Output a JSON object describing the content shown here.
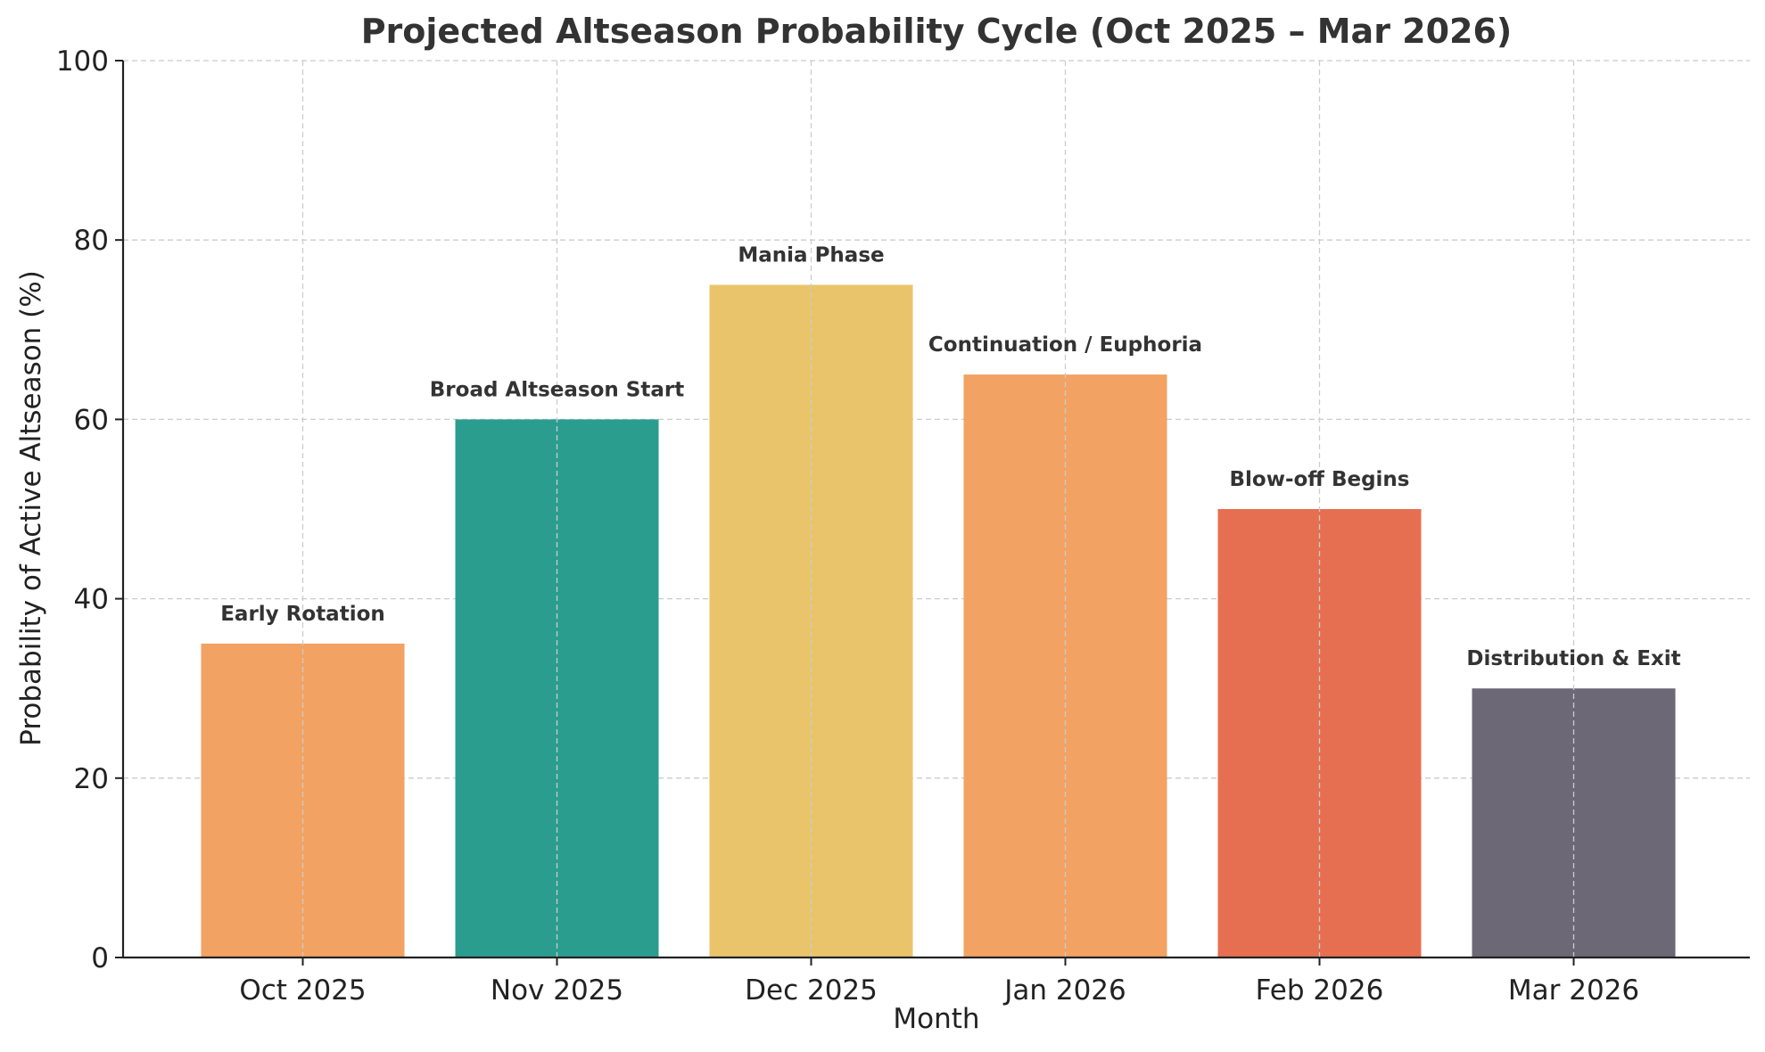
{
  "chart_data": {
    "type": "bar",
    "title": "Projected Altseason Probability Cycle (Oct 2025 – Mar 2026)",
    "xlabel": "Month",
    "ylabel": "Probability of Active Altseason (%)",
    "ylim": [
      0,
      100
    ],
    "yticks": [
      "0",
      "20",
      "40",
      "60",
      "80",
      "100"
    ],
    "grid": true,
    "categories": [
      "Oct 2025",
      "Nov 2025",
      "Dec 2025",
      "Jan 2026",
      "Feb 2026",
      "Mar 2026"
    ],
    "values": [
      35,
      60,
      75,
      65,
      50,
      30
    ],
    "annotations": [
      "Early Rotation",
      "Broad Altseason Start",
      "Mania Phase",
      "Continuation / Euphoria",
      "Blow-off Begins",
      "Distribution & Exit"
    ],
    "colors": [
      "#F2A262",
      "#2A9D8F",
      "#E9C46A",
      "#F2A262",
      "#E76F51",
      "#6D6875"
    ]
  }
}
